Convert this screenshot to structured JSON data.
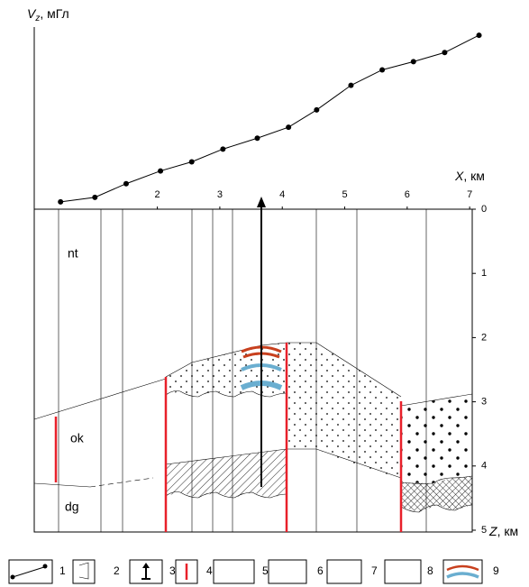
{
  "chart_data": {
    "type": "line",
    "y_label": [
      "V",
      "z",
      ", мГл"
    ],
    "x_label": [
      "X",
      ", км"
    ],
    "x": [
      0.45,
      1.0,
      1.5,
      2.05,
      2.55,
      3.05,
      3.6,
      4.1,
      4.55,
      5.1,
      5.6,
      6.1,
      6.6,
      7.15
    ],
    "values": [
      0.4,
      0.65,
      1.4,
      2.1,
      2.6,
      3.3,
      3.9,
      4.5,
      5.45,
      6.8,
      7.65,
      8.1,
      8.6,
      9.55
    ],
    "xlim": [
      0,
      7.2
    ],
    "ylim": [
      0,
      10
    ],
    "xticks": [
      2,
      3,
      4,
      5,
      6,
      7
    ],
    "color": "#000000"
  },
  "section": {
    "z_label": [
      "Z",
      ", км"
    ],
    "zlim": [
      0,
      5
    ],
    "zticks": [
      0,
      1,
      2,
      3,
      4,
      5
    ],
    "layers": [
      "nt",
      "ok",
      "dg"
    ]
  },
  "legend": [
    "1",
    "2",
    "3",
    "4",
    "5",
    "6",
    "7",
    "8",
    "9"
  ]
}
